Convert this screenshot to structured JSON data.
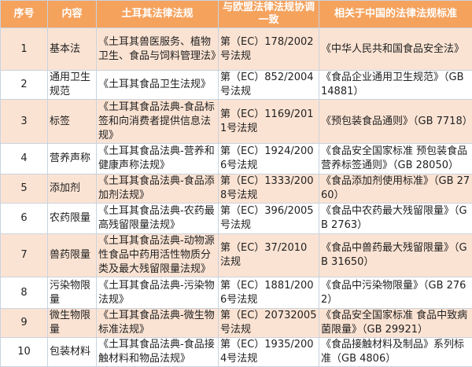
{
  "header": [
    "序号",
    "内容",
    "土耳其法律法规",
    "与欧盟法律法规协调一致",
    "相关于中国的法律法规标准"
  ],
  "rows": [
    {
      "no": "1",
      "content": "基本法",
      "turkey": "《土耳其兽医服务、植物卫生、食品与饲料管理法》",
      "eu": "第（EC）178/2002号法规",
      "china": "《中华人民共和国食品安全法》"
    },
    {
      "no": "2",
      "content": "通用卫生规范",
      "turkey": "《土耳其食品卫生法规》",
      "eu": "第（EC）852/2004号法规",
      "china": "《食品企业通用卫生规范》（GB 14881）"
    },
    {
      "no": "3",
      "content": "标签",
      "turkey": "《土耳其食品法典-食品标签和向消费者提供信息法规》",
      "eu": "第（EC）1169/2011号法规",
      "china": "《预包装食品通则》（GB 7718）"
    },
    {
      "no": "4",
      "content": "营养声称",
      "turkey": "《土耳其食品法典-营养和健康声称法规》",
      "eu": "第（EC）1924/2006号法规",
      "china": "《食品安全国家标准 预包装食品营养标签通则》（GB 28050）"
    },
    {
      "no": "5",
      "content": "添加剂",
      "turkey": "《土耳其食品法典-食品添加剂法规》",
      "eu": "第（EC）1333/2008号法规",
      "china": "《食品添加剂使用标准》（GB 2760）"
    },
    {
      "no": "6",
      "content": "农药限量",
      "turkey": "《土耳其食品法典-农药最高残留限量法规》",
      "eu": "第（EC）396/2005号法规",
      "china": "《食品中农药最大残留限量》（GB 2763）"
    },
    {
      "no": "7",
      "content": "兽药限量",
      "turkey": "《土耳其食品法典-动物源性食品中药用活性物质分类及最大残留限量法规》",
      "eu": "第（EC）37/2010法规",
      "china": "《食品中兽药最大残留限量》（GB 31650）"
    },
    {
      "no": "8",
      "content": "污染物限量",
      "turkey": "《土耳其食品法典-污染物法规》",
      "eu": "第（EC）1881/2006号法规",
      "china": "《食品中污染物限量》（GB 2762）"
    },
    {
      "no": "9",
      "content": "微生物限量",
      "turkey": "《土耳其食品法典-微生物标准法规》",
      "eu": "第（EC）20732005号法规",
      "china": "《食品安全国家标准 食品中致病菌限量》（GB 29921）"
    },
    {
      "no": "10",
      "content": "包装材料",
      "turkey": "《土耳其食品法典-食品接触材料和物品法规》",
      "eu": "第（EC）1935/2004号法规",
      "china": "《食品接触材料及制品》系列标准（GB 4806）"
    }
  ],
  "colors": {
    "header": "#f5a25d",
    "odd_row": "#fbe3d3",
    "even_row": "#ffffff"
  }
}
